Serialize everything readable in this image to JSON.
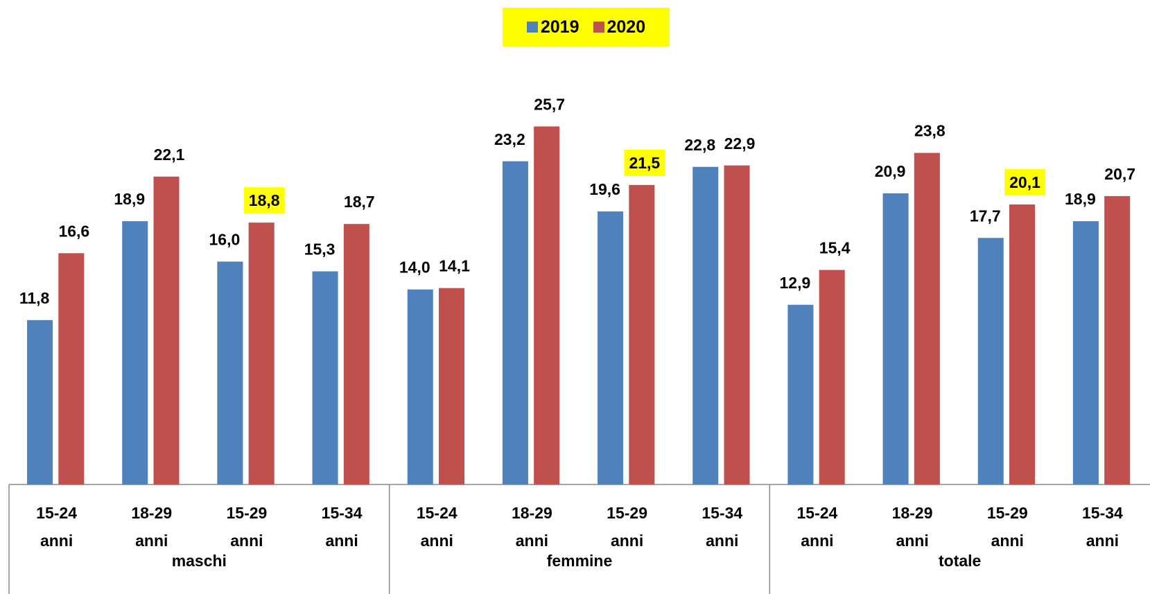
{
  "chart_data": {
    "type": "bar",
    "categories": [
      "15-24 anni",
      "18-29 anni",
      "15-29 anni",
      "15-34 anni",
      "15-24 anni",
      "18-29 anni",
      "15-29 anni",
      "15-34 anni",
      "15-24 anni",
      "18-29 anni",
      "15-29 anni",
      "15-34 anni"
    ],
    "groups": [
      "maschi",
      "femmine",
      "totale"
    ],
    "series": [
      {
        "name": "2019",
        "color": "#4f81bd",
        "values": [
          11.8,
          18.9,
          16.0,
          15.3,
          14.0,
          23.2,
          19.6,
          22.8,
          12.9,
          20.9,
          17.7,
          18.9
        ],
        "value_labels": [
          "11,8",
          "18,9",
          "16,0",
          "15,3",
          "14,0",
          "23,2",
          "19,6",
          "22,8",
          "12,9",
          "20,9",
          "17,7",
          "18,9"
        ],
        "highlighted": [
          false,
          false,
          false,
          false,
          false,
          false,
          false,
          false,
          false,
          false,
          false,
          false
        ]
      },
      {
        "name": "2020",
        "color": "#c0504d",
        "values": [
          16.6,
          22.1,
          18.8,
          18.7,
          14.1,
          25.7,
          21.5,
          22.9,
          15.4,
          23.8,
          20.1,
          20.7
        ],
        "value_labels": [
          "16,6",
          "22,1",
          "18,8",
          "18,7",
          "14,1",
          "25,7",
          "21,5",
          "22,9",
          "15,4",
          "23,8",
          "20,1",
          "20,7"
        ],
        "highlighted": [
          false,
          false,
          true,
          false,
          false,
          false,
          true,
          false,
          false,
          false,
          true,
          false
        ]
      }
    ],
    "highlight_color": "#ffff00",
    "legend": "top",
    "legend_background": "#ffff00",
    "ylim": [
      0,
      30
    ]
  }
}
